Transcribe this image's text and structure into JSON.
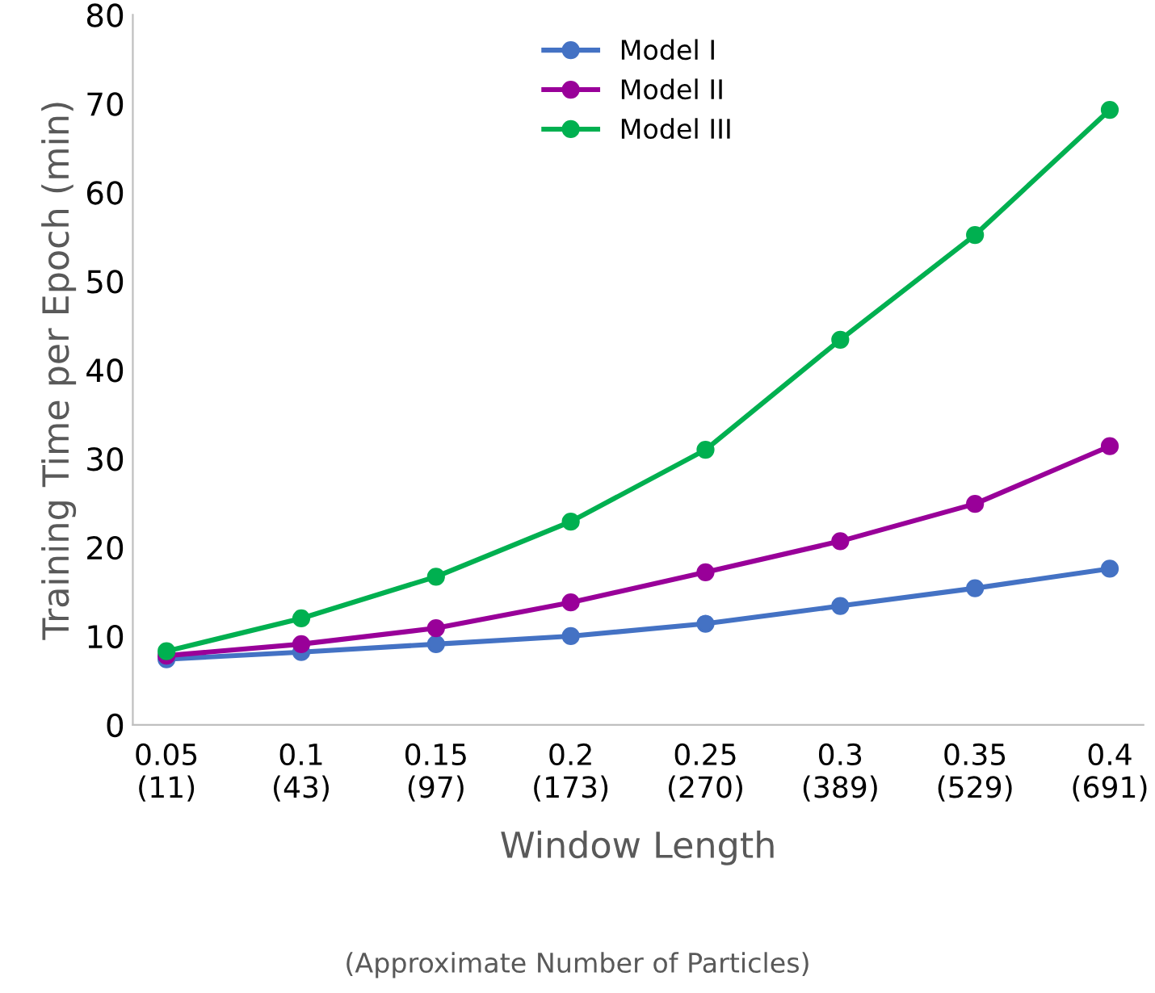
{
  "chart_data": {
    "type": "line",
    "xlabel": "Window Length",
    "ylabel": "Training Time per Epoch (min)",
    "annotations": [
      "(Approximate Number of Particles)"
    ],
    "categories": [
      "0.05\n(11)",
      "0.1\n(43)",
      "0.15\n(97)",
      "0.2\n(173)",
      "0.25\n(270)",
      "0.3\n(389)",
      "0.35\n(529)",
      "0.4\n(691)"
    ],
    "series": [
      {
        "name": "Model I",
        "color": "#4472c4",
        "values": [
          7.4,
          8.2,
          9.1,
          10.0,
          11.4,
          13.4,
          15.4,
          17.6
        ]
      },
      {
        "name": "Model II",
        "color": "#990099",
        "values": [
          7.8,
          9.1,
          10.9,
          13.8,
          17.2,
          20.7,
          24.9,
          31.4
        ]
      },
      {
        "name": "Model III",
        "color": "#00b050",
        "values": [
          8.3,
          12.0,
          16.7,
          22.9,
          31.0,
          43.4,
          55.2,
          69.3
        ]
      }
    ],
    "ylim": [
      0,
      80
    ],
    "yticks": [
      0,
      10,
      20,
      30,
      40,
      50,
      60,
      70,
      80
    ],
    "grid": false,
    "legend": "top",
    "marker": "circle",
    "line_style": "solid"
  }
}
